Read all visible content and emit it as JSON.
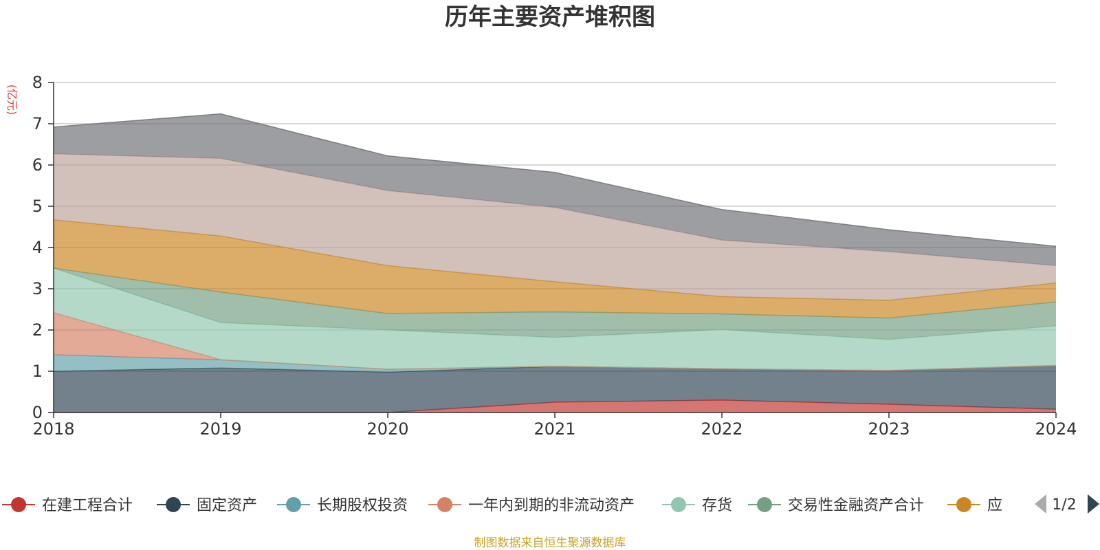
{
  "chart_data": {
    "type": "area",
    "stacked": true,
    "title": "历年主要资产堆积图",
    "unit_label": "(亿元)",
    "source_note": "制图数据来自恒生聚源数据库",
    "x": [
      "2018",
      "2019",
      "2020",
      "2021",
      "2022",
      "2023",
      "2024"
    ],
    "ylim": [
      0,
      8
    ],
    "yticks": [
      0,
      1,
      2,
      3,
      4,
      5,
      6,
      7,
      8
    ],
    "grid": true,
    "legend_position": "bottom",
    "legend_page": "1/2",
    "series": [
      {
        "name": "在建工程合计",
        "color": "#c23531",
        "values": [
          0,
          0,
          0,
          0.25,
          0.3,
          0.2,
          0.08
        ]
      },
      {
        "name": "固定资产",
        "color": "#2f4554",
        "values": [
          1.0,
          1.08,
          0.98,
          0.87,
          0.76,
          0.82,
          1.06
        ]
      },
      {
        "name": "长期股权投资",
        "color": "#61a0a8",
        "values": [
          0.4,
          0.2,
          0.07,
          0.0,
          0.0,
          0.0,
          0.0
        ]
      },
      {
        "name": "一年内到期的非流动资产",
        "color": "#d48265",
        "values": [
          1.02,
          0.0,
          0.0,
          0.0,
          0.0,
          0.0,
          0.0
        ]
      },
      {
        "name": "存货",
        "color": "#91c7ae",
        "values": [
          1.08,
          0.9,
          0.95,
          0.7,
          0.95,
          0.75,
          0.96
        ]
      },
      {
        "name": "交易性金融资产合计",
        "color": "#749f83",
        "values": [
          0.0,
          0.74,
          0.4,
          0.62,
          0.38,
          0.52,
          0.58
        ]
      },
      {
        "name": "应",
        "color": "#ca8622",
        "values": [
          1.17,
          1.36,
          1.16,
          0.73,
          0.42,
          0.43,
          0.46
        ]
      },
      {
        "name": "",
        "color": "#bda29a",
        "values": [
          1.6,
          1.88,
          1.82,
          1.8,
          1.37,
          1.18,
          0.42
        ]
      },
      {
        "name": "",
        "color": "#6e7074",
        "values": [
          0.65,
          1.08,
          0.84,
          0.85,
          0.74,
          0.53,
          0.47
        ]
      }
    ]
  }
}
